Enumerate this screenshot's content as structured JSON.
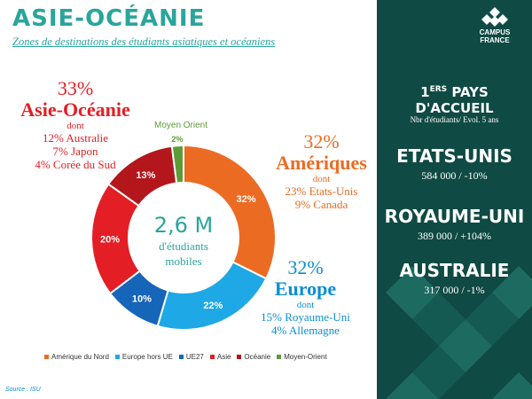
{
  "title": "ASIE-OCÉANIE",
  "subtitle": "Zones de destinations des étudiants asiatiques et océaniens",
  "colors": {
    "teal": "#2aa59b",
    "panel": "#0f4a44"
  },
  "callouts": {
    "asie": {
      "pct": "33%",
      "name": "Asie-Océanie",
      "dont": "dont",
      "lines": [
        "12% Australie",
        "7% Japon",
        "4% Corée du Sud"
      ]
    },
    "ameriques": {
      "pct": "32%",
      "name": "Amériques",
      "dont": "dont",
      "lines": [
        "23% Etats-Unis",
        "9% Canada"
      ]
    },
    "europe": {
      "pct": "32%",
      "name": "Europe",
      "dont": "dont",
      "lines": [
        "15% Royaume-Uni",
        "4% Allemagne"
      ]
    },
    "moyen_orient": {
      "name": "Moyen Orient"
    }
  },
  "center": {
    "value": "2,6 M",
    "line1": "d'étudiants",
    "line2": "mobiles"
  },
  "chart_data": {
    "type": "pie",
    "donut": true,
    "categories": [
      "Amérique du Nord",
      "Europe hors UE",
      "UE27",
      "Asie",
      "Océanie",
      "Moyen-Orient"
    ],
    "values": [
      32,
      22,
      10,
      20,
      13,
      2
    ],
    "labels": [
      "32%",
      "22%",
      "10%",
      "20%",
      "13%",
      "2%"
    ],
    "colors": [
      "#ec6b23",
      "#1ea8e6",
      "#1565b8",
      "#e31e24",
      "#b3171c",
      "#5d9b37"
    ],
    "legend_position": "bottom"
  },
  "source": "Source : ISU",
  "panel": {
    "logo_line1": "CAMPUS",
    "logo_line2": "FRANCE",
    "heading_prefix": "1",
    "heading_sup": "ERS",
    "heading_rest": " PAYS",
    "heading_line2": "D'ACCUEIL",
    "heading_sub": "Nbr d'étudiants/ Evol. 5 ans",
    "countries": [
      {
        "name": "ETATS-UNIS",
        "value": "584 000 / -10%"
      },
      {
        "name": "ROYAUME-UNI",
        "value": "389 000 / +104%"
      },
      {
        "name": "AUSTRALIE",
        "value": "317 000 / -1%"
      }
    ]
  }
}
